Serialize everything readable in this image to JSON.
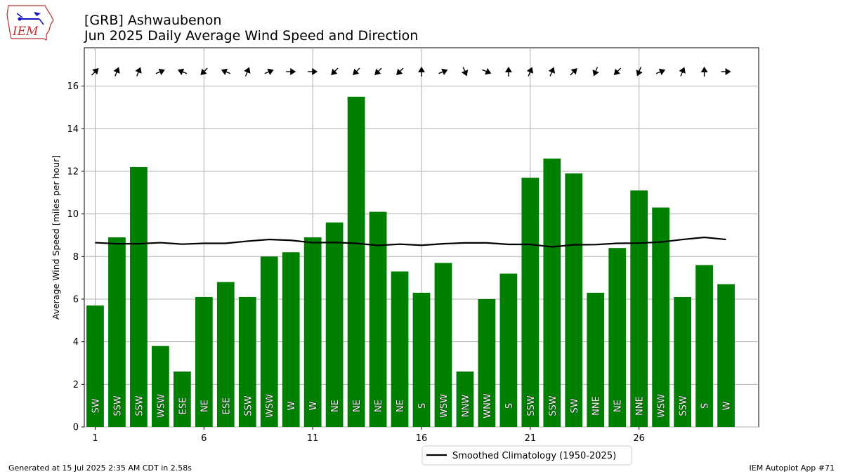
{
  "header": {
    "title_line1": "[GRB] Ashwaubenon",
    "title_line2": "Jun 2025 Daily Average Wind Speed and Direction"
  },
  "logo": {
    "text": "IEM",
    "icon": "iowa-state-outline-logo"
  },
  "footer": {
    "generated": "Generated at 15 Jul 2025 2:35 AM CDT in 2.58s",
    "app": "IEM Autoplot App #71"
  },
  "colors": {
    "bar": "#008000",
    "climatology": "#000000",
    "grid": "#b0b0b0"
  },
  "chart_data": {
    "type": "bar",
    "ylabel": "Average Wind Speed [miles per hour]",
    "ylim": [
      0,
      17.8
    ],
    "xlim": [
      0.5,
      31.5
    ],
    "yticks": [
      0,
      2,
      4,
      6,
      8,
      10,
      12,
      14,
      16
    ],
    "xticks": [
      1,
      6,
      11,
      16,
      21,
      26
    ],
    "grid": true,
    "legend_position": "bottom-center",
    "days": [
      1,
      2,
      3,
      4,
      5,
      6,
      7,
      8,
      9,
      10,
      11,
      12,
      13,
      14,
      15,
      16,
      17,
      18,
      19,
      20,
      21,
      22,
      23,
      24,
      25,
      26,
      27,
      28,
      29,
      30
    ],
    "series": [
      {
        "name": "Average Wind Speed",
        "values": [
          5.7,
          8.9,
          12.2,
          3.8,
          2.6,
          6.1,
          6.8,
          6.1,
          8.0,
          8.2,
          8.9,
          9.6,
          15.5,
          10.1,
          7.3,
          6.3,
          7.7,
          2.6,
          6.0,
          7.2,
          11.7,
          12.6,
          11.9,
          6.3,
          8.4,
          11.1,
          10.3,
          6.1,
          7.6,
          6.7
        ]
      },
      {
        "name": "Smoothed Climatology (1950-2025)",
        "values": [
          8.65,
          8.6,
          8.6,
          8.65,
          8.58,
          8.62,
          8.62,
          8.72,
          8.8,
          8.76,
          8.65,
          8.66,
          8.62,
          8.52,
          8.58,
          8.53,
          8.6,
          8.64,
          8.64,
          8.57,
          8.57,
          8.45,
          8.55,
          8.56,
          8.62,
          8.63,
          8.68,
          8.8,
          8.9,
          8.8
        ]
      }
    ],
    "directions": [
      "SW",
      "SSW",
      "SSW",
      "WSW",
      "ESE",
      "NE",
      "ESE",
      "SSW",
      "WSW",
      "W",
      "W",
      "NE",
      "NE",
      "NE",
      "NE",
      "S",
      "WSW",
      "NNW",
      "WNW",
      "S",
      "SSW",
      "SSW",
      "SW",
      "NNE",
      "NE",
      "NNE",
      "WSW",
      "SSW",
      "S",
      "W"
    ],
    "arrow_angles_deg": [
      45,
      22.5,
      22.5,
      67.5,
      292.5,
      225,
      292.5,
      22.5,
      67.5,
      90,
      90,
      225,
      225,
      225,
      225,
      0,
      67.5,
      157.5,
      112.5,
      0,
      22.5,
      22.5,
      45,
      202.5,
      225,
      202.5,
      67.5,
      22.5,
      0,
      90
    ]
  }
}
